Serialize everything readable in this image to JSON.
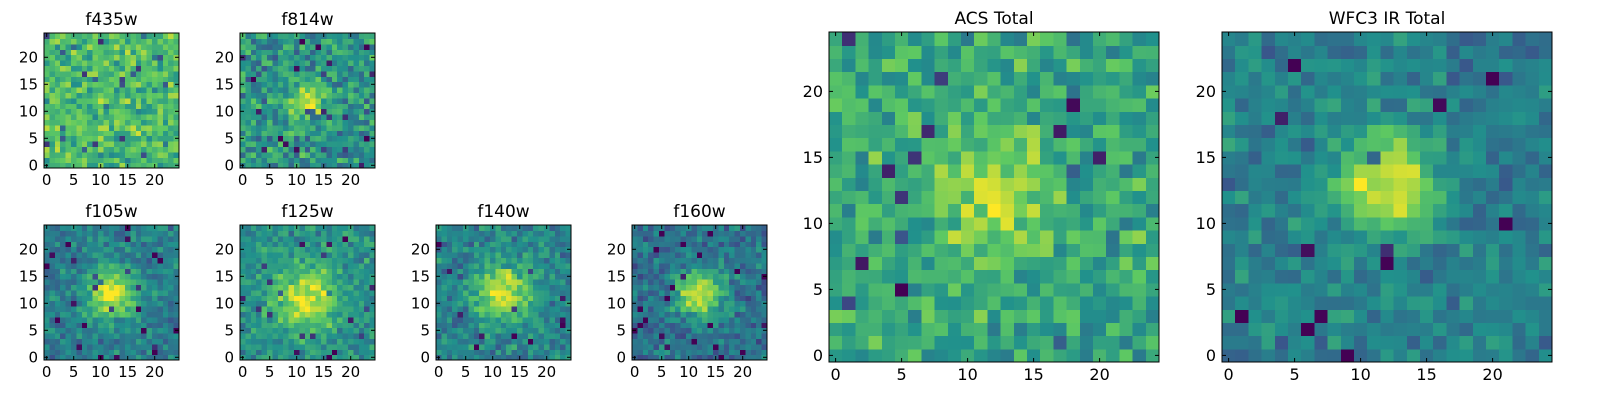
{
  "figure": {
    "background": "#ffffff",
    "colormap": "viridis",
    "colormap_stops": [
      "#440154",
      "#3b528b",
      "#21918c",
      "#5ec962",
      "#fde725"
    ]
  },
  "chart_data": [
    {
      "type": "heatmap",
      "title": "f435w",
      "grid_size": 25,
      "xlim": [
        0,
        24
      ],
      "ylim": [
        0,
        24
      ],
      "xticks": [
        "0",
        "5",
        "10",
        "15",
        "20"
      ],
      "yticks": [
        "0",
        "5",
        "10",
        "15",
        "20"
      ],
      "value_range": [
        0,
        1
      ],
      "peak": {
        "x": 12,
        "y": 12,
        "amplitude": 0.0,
        "sigma": 3
      },
      "background_level": 0.68,
      "noise_level": 0.16,
      "seed": 11
    },
    {
      "type": "heatmap",
      "title": "f814w",
      "grid_size": 25,
      "xlim": [
        0,
        24
      ],
      "ylim": [
        0,
        24
      ],
      "xticks": [
        "0",
        "5",
        "10",
        "15",
        "20"
      ],
      "yticks": [
        "0",
        "5",
        "10",
        "15",
        "20"
      ],
      "value_range": [
        0,
        1
      ],
      "peak": {
        "x": 12,
        "y": 12,
        "amplitude": 0.35,
        "sigma": 2.6
      },
      "background_level": 0.52,
      "noise_level": 0.17,
      "seed": 23
    },
    {
      "type": "heatmap",
      "title": "f105w",
      "grid_size": 25,
      "xlim": [
        0,
        24
      ],
      "ylim": [
        0,
        24
      ],
      "xticks": [
        "0",
        "5",
        "10",
        "15",
        "20"
      ],
      "yticks": [
        "0",
        "5",
        "10",
        "15",
        "20"
      ],
      "value_range": [
        0,
        1
      ],
      "peak": {
        "x": 12,
        "y": 12,
        "amplitude": 0.55,
        "sigma": 3.2
      },
      "background_level": 0.42,
      "noise_level": 0.12,
      "seed": 37
    },
    {
      "type": "heatmap",
      "title": "f125w",
      "grid_size": 25,
      "xlim": [
        0,
        24
      ],
      "ylim": [
        0,
        24
      ],
      "xticks": [
        "0",
        "5",
        "10",
        "15",
        "20"
      ],
      "yticks": [
        "0",
        "5",
        "10",
        "15",
        "20"
      ],
      "value_range": [
        0,
        1
      ],
      "peak": {
        "x": 12,
        "y": 11,
        "amplitude": 0.45,
        "sigma": 4.0
      },
      "background_level": 0.5,
      "noise_level": 0.12,
      "seed": 41
    },
    {
      "type": "heatmap",
      "title": "f140w",
      "grid_size": 25,
      "xlim": [
        0,
        24
      ],
      "ylim": [
        0,
        24
      ],
      "xticks": [
        "0",
        "5",
        "10",
        "15",
        "20"
      ],
      "yticks": [
        "0",
        "5",
        "10",
        "15",
        "20"
      ],
      "value_range": [
        0,
        1
      ],
      "peak": {
        "x": 12,
        "y": 12,
        "amplitude": 0.5,
        "sigma": 3.6
      },
      "background_level": 0.45,
      "noise_level": 0.13,
      "seed": 53
    },
    {
      "type": "heatmap",
      "title": "f160w",
      "grid_size": 25,
      "xlim": [
        0,
        24
      ],
      "ylim": [
        0,
        24
      ],
      "xticks": [
        "0",
        "5",
        "10",
        "15",
        "20"
      ],
      "yticks": [
        "0",
        "5",
        "10",
        "15",
        "20"
      ],
      "value_range": [
        0,
        1
      ],
      "peak": {
        "x": 12,
        "y": 12,
        "amplitude": 0.6,
        "sigma": 3.0
      },
      "background_level": 0.38,
      "noise_level": 0.12,
      "seed": 67
    },
    {
      "type": "heatmap",
      "title": "ACS Total",
      "grid_size": 25,
      "xlim": [
        0,
        24
      ],
      "ylim": [
        0,
        24
      ],
      "xticks": [
        "0",
        "5",
        "10",
        "15",
        "20"
      ],
      "yticks": [
        "0",
        "5",
        "10",
        "15",
        "20"
      ],
      "value_range": [
        0,
        1
      ],
      "peak": {
        "x": 12,
        "y": 12,
        "amplitude": 0.28,
        "sigma": 3.0
      },
      "background_level": 0.6,
      "noise_level": 0.15,
      "seed": 79
    },
    {
      "type": "heatmap",
      "title": "WFC3 IR Total",
      "grid_size": 25,
      "xlim": [
        0,
        24
      ],
      "ylim": [
        0,
        24
      ],
      "xticks": [
        "0",
        "5",
        "10",
        "15",
        "20"
      ],
      "yticks": [
        "0",
        "5",
        "10",
        "15",
        "20"
      ],
      "value_range": [
        0,
        1
      ],
      "peak": {
        "x": 12,
        "y": 13,
        "amplitude": 0.55,
        "sigma": 2.6
      },
      "background_level": 0.43,
      "noise_level": 0.11,
      "seed": 97
    }
  ]
}
